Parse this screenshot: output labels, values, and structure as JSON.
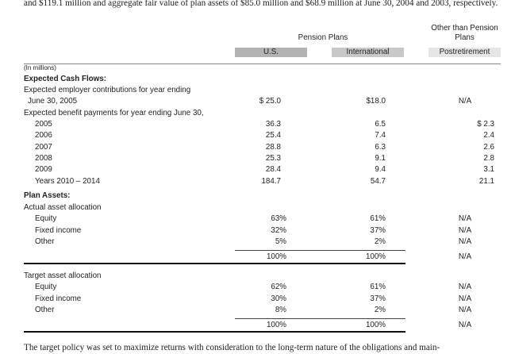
{
  "intro": "and $119.1 million and aggregate fair value of plan assets of $85.0 million and $68.9 million at June 30, 2004 and 2003, respectively.",
  "table": {
    "group_headers": [
      "Pension Plans",
      "Other than Pension Plans"
    ],
    "columns": [
      "U.S.",
      "International",
      "Postretirement"
    ],
    "rows": [
      {
        "label": "(In millions)"
      },
      {
        "label": "Expected Cash Flows:"
      },
      {
        "label": "Expected employer contributions for year ending"
      },
      {
        "label": "June 30, 2005",
        "values": [
          "$ 25.0",
          "$18.0",
          "N/A"
        ]
      },
      {
        "label": "Expected benefit payments for year ending June 30,"
      },
      {
        "label": "2005",
        "values": [
          "36.3",
          "6.5",
          "$ 2.3"
        ]
      },
      {
        "label": "2006",
        "values": [
          "25.4",
          "7.4",
          "2.4"
        ]
      },
      {
        "label": "2007",
        "values": [
          "28.8",
          "6.3",
          "2.6"
        ]
      },
      {
        "label": "2008",
        "values": [
          "25.3",
          "9.1",
          "2.8"
        ]
      },
      {
        "label": "2009",
        "values": [
          "28.4",
          "9.4",
          "3.1"
        ]
      },
      {
        "label": "Years 2010 – 2014",
        "values": [
          "184.7",
          "54.7",
          "21.1"
        ]
      },
      {
        "label": "Plan Assets:"
      },
      {
        "label": "Actual asset allocation"
      },
      {
        "label": "Equity",
        "values": [
          "63%",
          "61%",
          "N/A"
        ]
      },
      {
        "label": "Fixed income",
        "values": [
          "32%",
          "37%",
          "N/A"
        ]
      },
      {
        "label": "Other",
        "values": [
          "5%",
          "2%",
          "N/A"
        ]
      },
      {
        "values": [
          "100%",
          "100%",
          "N/A"
        ]
      },
      {
        "label": "Target asset allocation"
      },
      {
        "label": "Equity",
        "values": [
          "62%",
          "61%",
          "N/A"
        ]
      },
      {
        "label": "Fixed income",
        "values": [
          "30%",
          "37%",
          "N/A"
        ]
      },
      {
        "label": "Other",
        "values": [
          "8%",
          "2%",
          "N/A"
        ]
      },
      {
        "values": [
          "100%",
          "100%",
          "N/A"
        ]
      }
    ]
  },
  "footer": "The target policy was set to maximize returns with consideration to the long-term nature of the obligations and main-"
}
